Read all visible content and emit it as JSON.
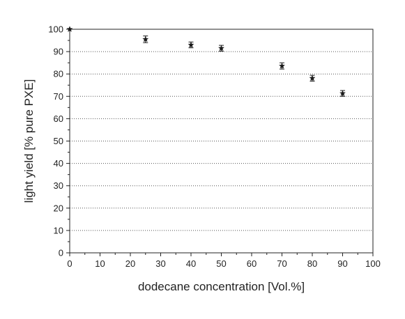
{
  "chart_data": {
    "type": "scatter",
    "title": "",
    "xlabel": "dodecane concentration [Vol.%]",
    "ylabel": "light yield [% pure PXE]",
    "xlim": [
      0,
      100
    ],
    "ylim": [
      0,
      100
    ],
    "x_ticks": [
      "0",
      "10",
      "20",
      "30",
      "40",
      "50",
      "60",
      "70",
      "80",
      "90",
      "100"
    ],
    "y_ticks": [
      "0",
      "10",
      "20",
      "30",
      "40",
      "50",
      "60",
      "70",
      "80",
      "90",
      "100"
    ],
    "grid": "horizontal dotted",
    "marker": "star",
    "series": [
      {
        "points": [
          {
            "x": 0,
            "y": 100.0,
            "err": 0
          },
          {
            "x": 25,
            "y": 95.5,
            "err": 1.5
          },
          {
            "x": 40,
            "y": 93.0,
            "err": 1.3
          },
          {
            "x": 50,
            "y": 91.5,
            "err": 1.3
          },
          {
            "x": 70,
            "y": 83.6,
            "err": 1.4
          },
          {
            "x": 80,
            "y": 78.1,
            "err": 1.3
          },
          {
            "x": 90,
            "y": 71.3,
            "err": 1.3
          }
        ]
      }
    ],
    "colors": {
      "marker": "#1a1a1a",
      "axis": "#222222",
      "grid": "#555555"
    }
  }
}
